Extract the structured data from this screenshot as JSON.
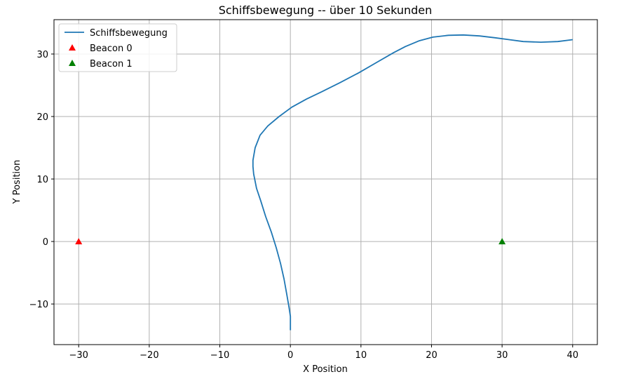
{
  "chart_data": {
    "type": "line",
    "title": "Schiffsbewegung -- über 10 Sekunden",
    "xlabel": "X Position",
    "ylabel": "Y Position",
    "xlim": [
      -33.5,
      43.5
    ],
    "ylim": [
      -16.5,
      35.5
    ],
    "xticks": [
      -30,
      -20,
      -10,
      0,
      10,
      20,
      30,
      40
    ],
    "yticks": [
      -10,
      0,
      10,
      20,
      30
    ],
    "xtick_labels": [
      "−30",
      "−20",
      "−10",
      "0",
      "10",
      "20",
      "30",
      "40"
    ],
    "ytick_labels": [
      "−10",
      "0",
      "10",
      "20",
      "30"
    ],
    "grid": true,
    "legend_position": "top-left",
    "series": [
      {
        "name": "Schiffsbewegung",
        "type": "line",
        "color": "#1f77b4",
        "x": [
          0,
          0,
          -0.2,
          -0.5,
          -0.9,
          -1.4,
          -2.0,
          -2.7,
          -3.5,
          -4.2,
          -4.8,
          -5.2,
          -5.3,
          -5.3,
          -5.0,
          -4.3,
          -3.2,
          -1.6,
          0.2,
          2.3,
          4.5,
          7.0,
          9.7,
          12.3,
          14.6,
          16.3,
          18.2,
          20.2,
          22.4,
          24.5,
          26.8,
          29.0,
          31.0,
          33.0,
          35.5,
          37.9,
          40.0
        ],
        "y": [
          -14.2,
          -12.0,
          -10.5,
          -8.5,
          -6.0,
          -3.5,
          -1.0,
          1.5,
          4.0,
          6.5,
          8.5,
          10.8,
          12.0,
          13.0,
          15.0,
          17.0,
          18.5,
          20.0,
          21.5,
          22.8,
          24.0,
          25.4,
          27.0,
          28.7,
          30.2,
          31.2,
          32.1,
          32.7,
          33.0,
          33.05,
          32.9,
          32.6,
          32.3,
          32.0,
          31.9,
          32.0,
          32.3
        ]
      },
      {
        "name": "Beacon 0",
        "type": "scatter",
        "marker": "triangle",
        "color": "#ff0000",
        "x": [
          -30
        ],
        "y": [
          0
        ]
      },
      {
        "name": "Beacon 1",
        "type": "scatter",
        "marker": "triangle",
        "color": "#008000",
        "x": [
          30
        ],
        "y": [
          0
        ]
      }
    ]
  }
}
